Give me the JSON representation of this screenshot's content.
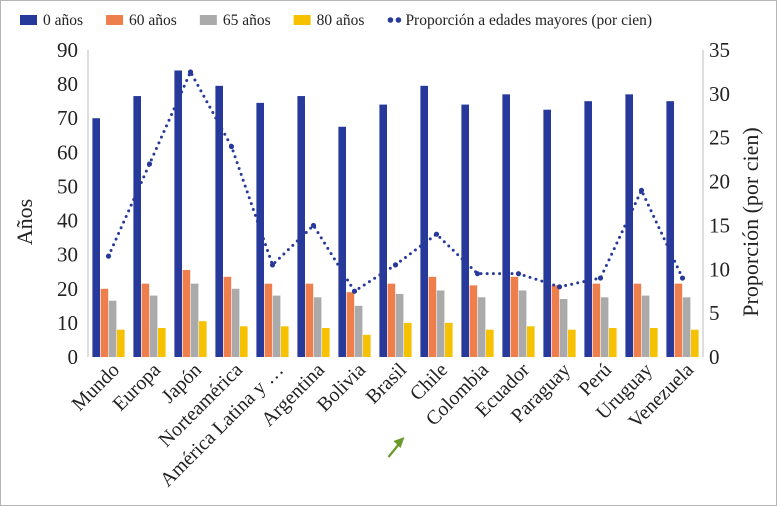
{
  "chart_data": {
    "type": "bar",
    "categories": [
      "Mundo",
      "Europa",
      "Japón",
      "Norteamérica",
      "América Latina y …",
      "Argentina",
      "Bolivia",
      "Brasil",
      "Chile",
      "Colombia",
      "Ecuador",
      "Paraguay",
      "Perú",
      "Uruguay",
      "Venezuela"
    ],
    "series": [
      {
        "name": "0 años",
        "axis": "left",
        "color": "#273a9b",
        "values": [
          70,
          76.5,
          84,
          79.5,
          74.5,
          76.5,
          67.5,
          74,
          79.5,
          74,
          77,
          72.5,
          75,
          77,
          75
        ]
      },
      {
        "name": "60 años",
        "axis": "left",
        "color": "#ee7f4c",
        "values": [
          20,
          21.5,
          25.5,
          23.5,
          21.5,
          21.5,
          19,
          21.5,
          23.5,
          21,
          23.5,
          21,
          21.5,
          21.5,
          21.5
        ]
      },
      {
        "name": "65 años",
        "axis": "left",
        "color": "#aaaaaa",
        "values": [
          16.5,
          18,
          21.5,
          20,
          18,
          17.5,
          15,
          18.5,
          19.5,
          17.5,
          19.5,
          17,
          17.5,
          18,
          17.5
        ]
      },
      {
        "name": "80 años",
        "axis": "left",
        "color": "#f6c200",
        "values": [
          8,
          8.5,
          10.5,
          9,
          9,
          8.5,
          6.5,
          10,
          10,
          8,
          9,
          8,
          8.5,
          8.5,
          8
        ]
      },
      {
        "name": "Proporción a edades mayores (por cien)",
        "axis": "right",
        "type": "line",
        "style": "dotted",
        "color": "#273a9b",
        "values": [
          11.5,
          22,
          32.5,
          24,
          10.5,
          15,
          7.5,
          10.5,
          14,
          9.5,
          9.5,
          8,
          9,
          19,
          9
        ]
      }
    ],
    "ylabel": "Años",
    "y2label": "Proporción (por cien)",
    "ylim": [
      0,
      90
    ],
    "y2lim": [
      0,
      35
    ],
    "yticks": [
      "0",
      "10",
      "20",
      "30",
      "40",
      "50",
      "60",
      "70",
      "80",
      "90"
    ],
    "y2ticks": [
      "0",
      "5",
      "10",
      "15",
      "20",
      "25",
      "30",
      "35"
    ],
    "grid": false,
    "legend_position": "top",
    "annotation": {
      "type": "arrow",
      "color": "#6a9a2a",
      "points_to": "Colombia"
    }
  }
}
